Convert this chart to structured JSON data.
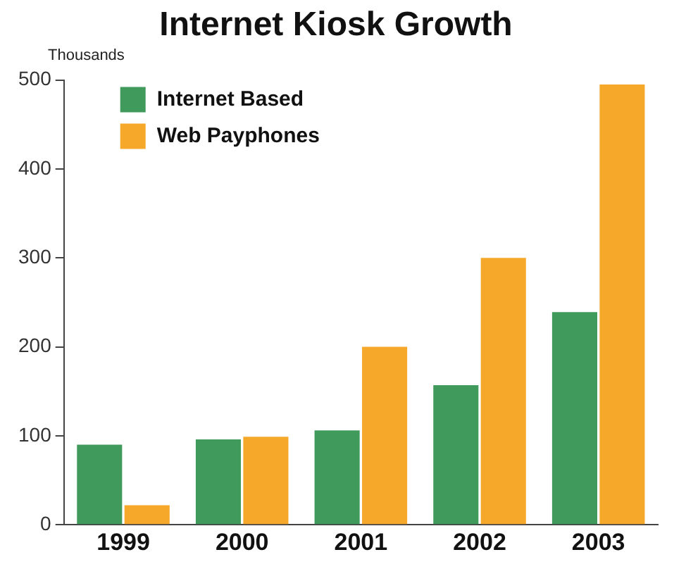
{
  "chart_data": {
    "type": "bar",
    "title": "Internet Kiosk Growth",
    "ylabel": "Thousands",
    "categories": [
      "1999",
      "2000",
      "2001",
      "2002",
      "2003"
    ],
    "series": [
      {
        "name": "Internet Based",
        "color": "#3f9a5c",
        "values": [
          90,
          96,
          106,
          157,
          239
        ]
      },
      {
        "name": "Web Payphones",
        "color": "#f5a82a",
        "values": [
          22,
          99,
          200,
          300,
          495
        ]
      }
    ],
    "ylim": [
      0,
      500
    ],
    "yticks": [
      0,
      100,
      200,
      300,
      400,
      500
    ],
    "grid": false,
    "legend": "top left"
  }
}
